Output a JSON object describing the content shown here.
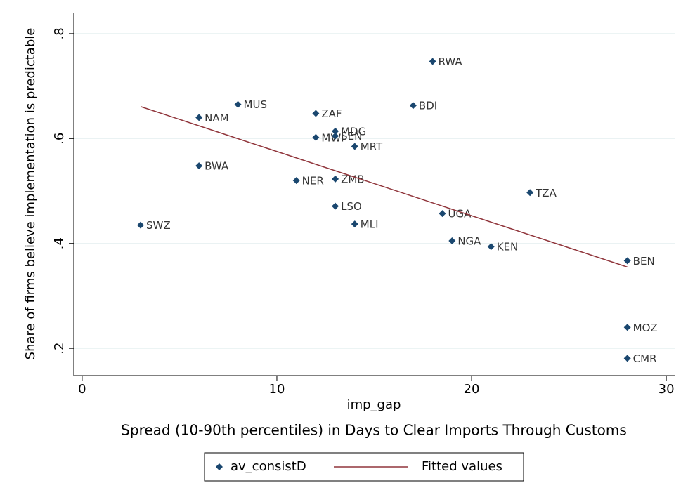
{
  "chart_data": {
    "type": "scatter",
    "y_label": "Share of firms believe implementation is predictable",
    "x_label": "imp_gap",
    "note": "Spread (10-90th percentiles) in Days to Clear Imports Through Customs",
    "xlim": [
      -0.43,
      30.43
    ],
    "ylim": [
      0.148,
      0.84
    ],
    "xticks": [
      0,
      10,
      20,
      30
    ],
    "yticks": [
      {
        "value": 0.2,
        "label": ".2"
      },
      {
        "value": 0.4,
        "label": ".4"
      },
      {
        "value": 0.6,
        "label": ".6"
      },
      {
        "value": 0.8,
        "label": ".8"
      }
    ],
    "grid": true,
    "series": [
      {
        "name": "av_consistD",
        "color": "#1a476f",
        "labels": [
          "SWZ",
          "NAM",
          "BWA",
          "MUS",
          "NER",
          "ZAF",
          "MWI",
          "MDG",
          "SEN",
          "ZMB",
          "LSO",
          "MLI",
          "MRT",
          "BDI",
          "RWA",
          "UGA",
          "NGA",
          "KEN",
          "TZA",
          "BEN",
          "MOZ",
          "CMR"
        ],
        "x": [
          3,
          6,
          6,
          8,
          11,
          12,
          12,
          13,
          13,
          13,
          13,
          14,
          14,
          17,
          18,
          18.5,
          19,
          21,
          23,
          28,
          28,
          28
        ],
        "values": [
          0.435,
          0.64,
          0.548,
          0.665,
          0.52,
          0.648,
          0.602,
          0.614,
          0.605,
          0.523,
          0.471,
          0.437,
          0.585,
          0.663,
          0.747,
          0.457,
          0.405,
          0.394,
          0.497,
          0.367,
          0.24,
          0.181
        ]
      },
      {
        "name": "Fitted values",
        "color": "#90353b",
        "line": true,
        "x": [
          3,
          28
        ],
        "values": [
          0.661,
          0.355
        ]
      }
    ]
  }
}
